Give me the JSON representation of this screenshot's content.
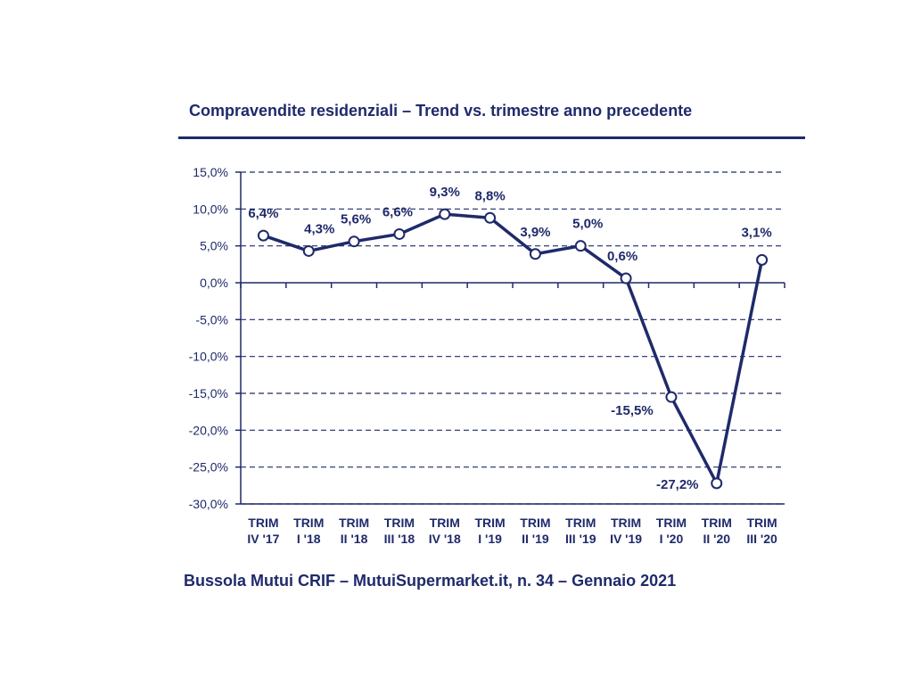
{
  "chart_data": {
    "type": "line",
    "title": "Compravendite residenziali – Trend vs. trimestre anno precedente",
    "categories": [
      [
        "TRIM",
        "IV '17"
      ],
      [
        "TRIM",
        "I '18"
      ],
      [
        "TRIM",
        "II '18"
      ],
      [
        "TRIM",
        "III '18"
      ],
      [
        "TRIM",
        "IV '18"
      ],
      [
        "TRIM",
        "I '19"
      ],
      [
        "TRIM",
        "II '19"
      ],
      [
        "TRIM",
        "III '19"
      ],
      [
        "TRIM",
        "IV '19"
      ],
      [
        "TRIM",
        "I '20"
      ],
      [
        "TRIM",
        "II '20"
      ],
      [
        "TRIM",
        "III '20"
      ]
    ],
    "values": [
      6.4,
      4.3,
      5.6,
      6.6,
      9.3,
      8.8,
      3.9,
      5.0,
      0.6,
      -15.5,
      -27.2,
      3.1
    ],
    "data_labels": [
      "6,4%",
      "4,3%",
      "5,6%",
      "6,6%",
      "9,3%",
      "8,8%",
      "3,9%",
      "5,0%",
      "0,6%",
      "-15,5%",
      "-27,2%",
      "3,1%"
    ],
    "ylim": [
      -30,
      15
    ],
    "yticks": [
      15,
      10,
      5,
      0,
      -5,
      -10,
      -15,
      -20,
      -25,
      -30
    ],
    "ytick_labels": [
      "15,0%",
      "10,0%",
      "5,0%",
      "0,0%",
      "-5,0%",
      "-10,0%",
      "-15,0%",
      "-20,0%",
      "-25,0%",
      "-30,0%"
    ],
    "grid": true,
    "gridline_style": "dashed",
    "xlabel": "",
    "ylabel": "",
    "colors": {
      "line": "#1f2a6b",
      "grid": "#1f2a6b",
      "text": "#1f2a6b",
      "marker_fill": "#ffffff"
    }
  },
  "footer": "Bussola Mutui CRIF – MutuiSupermarket.it, n. 34 – Gennaio 2021"
}
